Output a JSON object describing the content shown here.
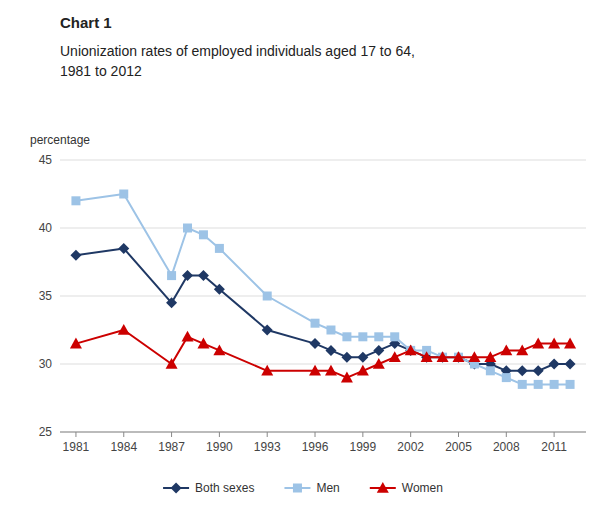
{
  "chart_data": {
    "type": "line",
    "title": "Chart 1",
    "subtitle": [
      "Unionization rates of employed individuals aged 17 to 64,",
      "1981 to 2012"
    ],
    "y_label": "percentage",
    "x": [
      1981,
      1984,
      1987,
      1988,
      1989,
      1990,
      1993,
      1996,
      1997,
      1998,
      1999,
      2000,
      2001,
      2002,
      2003,
      2004,
      2005,
      2006,
      2007,
      2008,
      2009,
      2010,
      2011,
      2012
    ],
    "series": [
      {
        "name": "Both sexes",
        "color": "#1f3864",
        "marker": "diamond",
        "values": [
          38.0,
          38.5,
          34.5,
          36.5,
          36.5,
          35.5,
          32.5,
          31.5,
          31.0,
          30.5,
          30.5,
          31.0,
          31.5,
          31.0,
          30.5,
          30.5,
          30.5,
          30.0,
          30.0,
          29.5,
          29.5,
          29.5,
          30.0,
          30.0
        ]
      },
      {
        "name": "Men",
        "color": "#9dc3e6",
        "marker": "square",
        "values": [
          42.0,
          42.5,
          36.5,
          40.0,
          39.5,
          38.5,
          35.0,
          33.0,
          32.5,
          32.0,
          32.0,
          32.0,
          32.0,
          31.0,
          31.0,
          30.5,
          30.5,
          30.0,
          29.5,
          29.0,
          28.5,
          28.5,
          28.5,
          28.5
        ]
      },
      {
        "name": "Women",
        "color": "#cc0000",
        "marker": "triangle",
        "values": [
          31.5,
          32.5,
          30.0,
          32.0,
          31.5,
          31.0,
          29.5,
          29.5,
          29.5,
          29.0,
          29.5,
          30.0,
          30.5,
          31.0,
          30.5,
          30.5,
          30.5,
          30.5,
          30.5,
          31.0,
          31.0,
          31.5,
          31.5,
          31.5
        ]
      }
    ],
    "xlim": [
      1980,
      2013
    ],
    "xticks": [
      1981,
      1984,
      1987,
      1990,
      1993,
      1996,
      1999,
      2002,
      2005,
      2008,
      2011
    ],
    "ylim": [
      25,
      45
    ],
    "yticks": [
      25,
      30,
      35,
      40,
      45
    ],
    "grid": true,
    "legend": "bottom"
  }
}
